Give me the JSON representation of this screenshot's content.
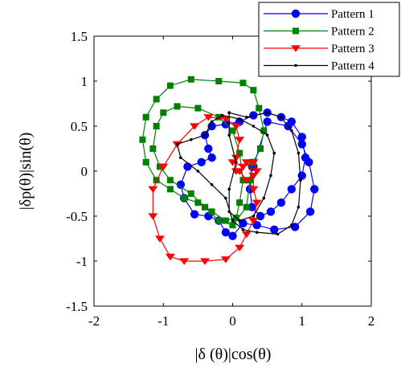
{
  "chart_data": {
    "type": "line",
    "xlabel": "|δ (θ)|cos(θ)",
    "ylabel": "|δp(θ)|sin(θ)",
    "xlim": [
      -2,
      2
    ],
    "ylim": [
      -1.5,
      1.5
    ],
    "xticks": [
      "-2",
      "-1",
      "0",
      "1",
      "2"
    ],
    "yticks": [
      "1.5",
      "1",
      "0.5",
      "0",
      "-0.5",
      "-1",
      "-1.5"
    ],
    "grid": false,
    "legend_position": "top-right",
    "series": [
      {
        "name": "Pattern 1",
        "color": "#0000FF",
        "marker": "circle",
        "points": [
          [
            0.3,
            0.05
          ],
          [
            0.5,
            0.55
          ],
          [
            0.8,
            0.5
          ],
          [
            1.0,
            0.3
          ],
          [
            1.1,
            0.1
          ],
          [
            1.18,
            -0.2
          ],
          [
            1.12,
            -0.45
          ],
          [
            0.9,
            -0.62
          ],
          [
            0.6,
            -0.65
          ],
          [
            0.35,
            -0.6
          ],
          [
            0.15,
            -0.58
          ],
          [
            0.0,
            -0.72
          ],
          [
            -0.1,
            -0.68
          ],
          [
            -0.2,
            -0.55
          ],
          [
            -0.35,
            -0.5
          ],
          [
            -0.55,
            -0.48
          ],
          [
            -0.7,
            -0.3
          ],
          [
            -0.75,
            -0.15
          ],
          [
            -0.65,
            0.05
          ],
          [
            -0.45,
            0.1
          ],
          [
            -0.3,
            0.15
          ],
          [
            -0.35,
            0.25
          ],
          [
            -0.4,
            0.4
          ],
          [
            -0.3,
            0.5
          ],
          [
            -0.1,
            0.52
          ],
          [
            0.1,
            0.55
          ],
          [
            0.3,
            0.62
          ],
          [
            0.5,
            0.65
          ],
          [
            0.7,
            0.6
          ],
          [
            0.85,
            0.55
          ],
          [
            1.0,
            0.38
          ],
          [
            1.05,
            0.15
          ],
          [
            1.0,
            -0.05
          ],
          [
            0.85,
            -0.2
          ],
          [
            0.7,
            -0.35
          ],
          [
            0.55,
            -0.45
          ],
          [
            0.4,
            -0.5
          ],
          [
            0.28,
            -0.4
          ],
          [
            0.25,
            -0.2
          ],
          [
            0.28,
            0.05
          ]
        ]
      },
      {
        "name": "Pattern 2",
        "color": "#008000",
        "marker": "square",
        "points": [
          [
            0.3,
            0.1
          ],
          [
            0.4,
            0.25
          ],
          [
            0.45,
            0.45
          ],
          [
            0.38,
            0.7
          ],
          [
            0.3,
            0.9
          ],
          [
            0.15,
            0.98
          ],
          [
            -0.2,
            1.0
          ],
          [
            -0.6,
            1.02
          ],
          [
            -0.9,
            0.95
          ],
          [
            -1.1,
            0.8
          ],
          [
            -1.25,
            0.6
          ],
          [
            -1.3,
            0.35
          ],
          [
            -1.25,
            0.1
          ],
          [
            -1.1,
            -0.1
          ],
          [
            -0.9,
            -0.2
          ],
          [
            -0.7,
            -0.3
          ],
          [
            -0.5,
            -0.35
          ],
          [
            -0.3,
            -0.45
          ],
          [
            -0.1,
            -0.55
          ],
          [
            0.05,
            -0.52
          ],
          [
            0.1,
            -0.35
          ],
          [
            0.15,
            -0.1
          ],
          [
            0.1,
            0.2
          ],
          [
            0.0,
            0.45
          ],
          [
            -0.2,
            0.6
          ],
          [
            -0.5,
            0.7
          ],
          [
            -0.8,
            0.72
          ],
          [
            -1.0,
            0.65
          ],
          [
            -1.1,
            0.5
          ],
          [
            -1.15,
            0.25
          ],
          [
            -1.05,
            0.05
          ],
          [
            -0.9,
            -0.1
          ],
          [
            -0.6,
            -0.25
          ],
          [
            -0.4,
            -0.4
          ],
          [
            -0.2,
            -0.55
          ],
          [
            0.0,
            -0.6
          ],
          [
            0.2,
            -0.4
          ],
          [
            0.25,
            -0.1
          ],
          [
            0.28,
            0.1
          ]
        ]
      },
      {
        "name": "Pattern 3",
        "color": "#FF0000",
        "marker": "triangle-down",
        "points": [
          [
            0.0,
            0.1
          ],
          [
            0.15,
            0.05
          ],
          [
            0.3,
            0.1
          ],
          [
            0.35,
            0.0
          ],
          [
            0.2,
            -0.1
          ],
          [
            0.1,
            0.0
          ],
          [
            0.2,
            0.1
          ],
          [
            0.3,
            -0.05
          ],
          [
            0.3,
            -0.2
          ],
          [
            0.35,
            -0.35
          ],
          [
            0.3,
            -0.55
          ],
          [
            0.2,
            -0.7
          ],
          [
            0.1,
            -0.85
          ],
          [
            -0.1,
            -0.98
          ],
          [
            -0.4,
            -1.0
          ],
          [
            -0.7,
            -1.0
          ],
          [
            -0.9,
            -0.95
          ],
          [
            -1.05,
            -0.75
          ],
          [
            -1.15,
            -0.5
          ],
          [
            -1.15,
            -0.2
          ],
          [
            -1.0,
            0.05
          ],
          [
            -0.8,
            0.3
          ],
          [
            -0.55,
            0.5
          ],
          [
            -0.35,
            0.6
          ],
          [
            -0.1,
            0.58
          ],
          [
            0.05,
            0.5
          ],
          [
            0.1,
            0.35
          ],
          [
            0.05,
            0.15
          ],
          [
            0.05,
            0.0
          ]
        ]
      },
      {
        "name": "Pattern 4",
        "color": "#000000",
        "marker": "dot",
        "points": [
          [
            -0.05,
            0.65
          ],
          [
            0.2,
            0.6
          ],
          [
            0.5,
            0.65
          ],
          [
            0.7,
            0.6
          ],
          [
            0.85,
            0.45
          ],
          [
            0.95,
            0.2
          ],
          [
            0.98,
            -0.1
          ],
          [
            0.95,
            -0.4
          ],
          [
            0.85,
            -0.6
          ],
          [
            0.65,
            -0.7
          ],
          [
            0.35,
            -0.68
          ],
          [
            0.15,
            -0.65
          ],
          [
            0.0,
            -0.55
          ],
          [
            -0.1,
            -0.3
          ],
          [
            -0.3,
            -0.15
          ],
          [
            -0.5,
            0.0
          ],
          [
            -0.75,
            0.15
          ],
          [
            -0.8,
            0.3
          ],
          [
            -0.6,
            0.35
          ],
          [
            -0.4,
            0.4
          ],
          [
            -0.3,
            0.55
          ],
          [
            -0.15,
            0.62
          ],
          [
            0.1,
            0.58
          ],
          [
            0.3,
            0.5
          ],
          [
            0.5,
            0.4
          ],
          [
            0.6,
            0.2
          ],
          [
            0.55,
            -0.05
          ],
          [
            0.45,
            -0.3
          ],
          [
            0.3,
            -0.5
          ],
          [
            0.1,
            -0.55
          ],
          [
            -0.05,
            -0.45
          ],
          [
            -0.05,
            -0.2
          ],
          [
            0.05,
            0.1
          ],
          [
            -0.05,
            0.4
          ],
          [
            -0.05,
            0.65
          ]
        ]
      }
    ]
  }
}
